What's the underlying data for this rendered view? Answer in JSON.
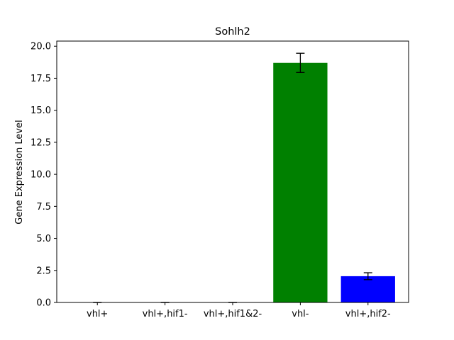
{
  "chart_data": {
    "type": "bar",
    "title": "Sohlh2",
    "xlabel": "",
    "ylabel": "Gene Expression Level",
    "categories": [
      "vhl+",
      "vhl+,hif1-",
      "vhl+,hif1&2-",
      "vhl-",
      "vhl+,hif2-"
    ],
    "values": [
      0.0,
      0.0,
      0.0,
      18.7,
      2.05
    ],
    "errors": [
      0.0,
      0.0,
      0.0,
      0.75,
      0.27
    ],
    "colors": [
      "#008000",
      "#ff0000",
      "#ffa500",
      "#008000",
      "#0000ff"
    ],
    "ylim": [
      0,
      20.4
    ],
    "yticks": [
      0.0,
      2.5,
      5.0,
      7.5,
      10.0,
      12.5,
      15.0,
      17.5,
      20.0
    ],
    "ytick_labels": [
      "0.0",
      "2.5",
      "5.0",
      "7.5",
      "10.0",
      "12.5",
      "15.0",
      "17.5",
      "20.0"
    ],
    "grid": false,
    "legend": "none"
  }
}
